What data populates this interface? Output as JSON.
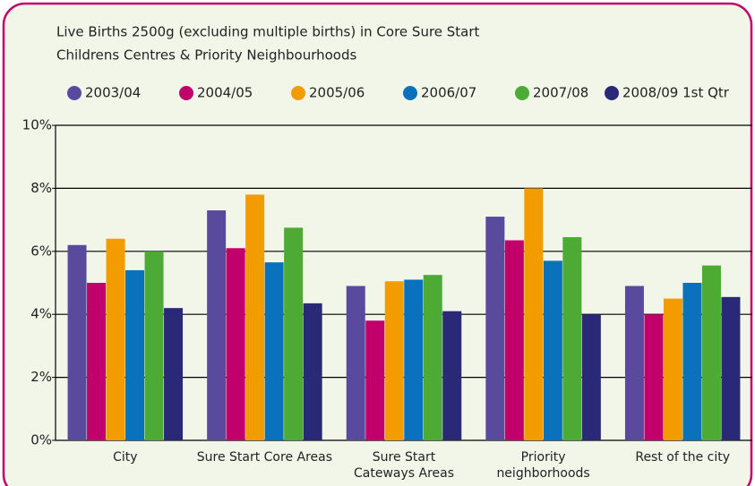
{
  "chart_data": {
    "type": "bar",
    "title": [
      "Live Births 2500g (excluding multiple births) in Core Sure Start",
      "Childrens Centres & Priority Neighbourhoods"
    ],
    "categories": [
      "City",
      "Sure Start Core Areas",
      "Sure Start Cateways Areas",
      "Priority neighborhoods",
      "Rest of the city"
    ],
    "series": [
      {
        "name": "2003/04",
        "color": "#5a4a9d",
        "values": [
          6.2,
          7.3,
          4.9,
          7.1,
          4.9
        ]
      },
      {
        "name": "2004/05",
        "color": "#c1006b",
        "values": [
          5.0,
          6.1,
          3.8,
          6.35,
          4.0
        ]
      },
      {
        "name": "2005/06",
        "color": "#f39c00",
        "values": [
          6.4,
          7.8,
          5.05,
          8.0,
          4.5
        ]
      },
      {
        "name": "2006/07",
        "color": "#0a72bd",
        "values": [
          5.4,
          5.65,
          5.1,
          5.7,
          5.0
        ]
      },
      {
        "name": "2007/08",
        "color": "#4caa35",
        "values": [
          6.0,
          6.75,
          5.25,
          6.45,
          5.55
        ]
      },
      {
        "name": "2008/09 1st Qtr",
        "color": "#2a2977",
        "values": [
          4.2,
          4.35,
          4.1,
          4.0,
          4.55
        ]
      }
    ],
    "ylim": [
      0,
      10
    ],
    "yticks": [
      {
        "value": 0,
        "label": "0%"
      },
      {
        "value": 2,
        "label": "2%"
      },
      {
        "value": 4,
        "label": "4%"
      },
      {
        "value": 6,
        "label": "6%"
      },
      {
        "value": 8,
        "label": "8%"
      },
      {
        "value": 10,
        "label": "10%"
      }
    ],
    "grid": true
  }
}
